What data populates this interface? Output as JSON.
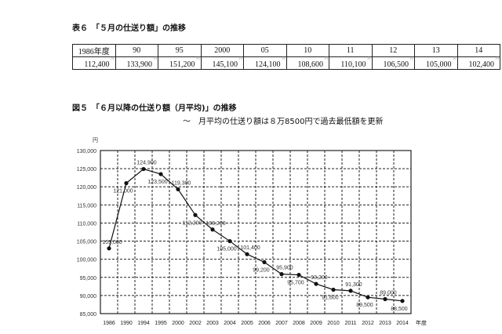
{
  "table6": {
    "title": "表６　「５月の仕送り額」の推移",
    "headers": [
      "1986年度",
      "90",
      "95",
      "2000",
      "05",
      "10",
      "11",
      "12",
      "13",
      "14"
    ],
    "values": [
      "112,400",
      "133,900",
      "151,200",
      "145,100",
      "124,100",
      "108,600",
      "110,100",
      "106,500",
      "105,000",
      "102,400"
    ],
    "unit_mark": "円"
  },
  "figure5": {
    "title": "図５　「６月以降の仕送り額（月平均)」の推移",
    "subtitle": "～　月平均の仕送り額は８万8500円で過去最低額を更新"
  },
  "chart_data": {
    "type": "line",
    "ylabel": "円",
    "xlabel": "年度",
    "ylim": [
      85000,
      130000
    ],
    "yticks": [
      "85,000",
      "90,000",
      "95,000",
      "100,000",
      "105,000",
      "110,000",
      "115,000",
      "120,000",
      "125,000",
      "130,000"
    ],
    "grid": true,
    "categories": [
      "1986",
      "1990",
      "1994",
      "1995",
      "2000",
      "2002",
      "2003",
      "2004",
      "2005",
      "2006",
      "2007",
      "2008",
      "2009",
      "2010",
      "2011",
      "2012",
      "2013",
      "2014"
    ],
    "values": [
      103000,
      121000,
      124900,
      123500,
      119300,
      112200,
      108200,
      105000,
      101400,
      99200,
      95900,
      95700,
      93200,
      91600,
      91300,
      89500,
      89000,
      88500
    ],
    "data_labels": [
      "103,000",
      "121,000",
      "124,900",
      "123,500",
      "119,300",
      "112,200",
      "108,200",
      "105,000",
      "101,400",
      "99,200",
      "95,900",
      "95,700",
      "93,200",
      "91,600",
      "91,300",
      "89,500",
      "89,000",
      "88,500"
    ],
    "color": "#111111"
  }
}
